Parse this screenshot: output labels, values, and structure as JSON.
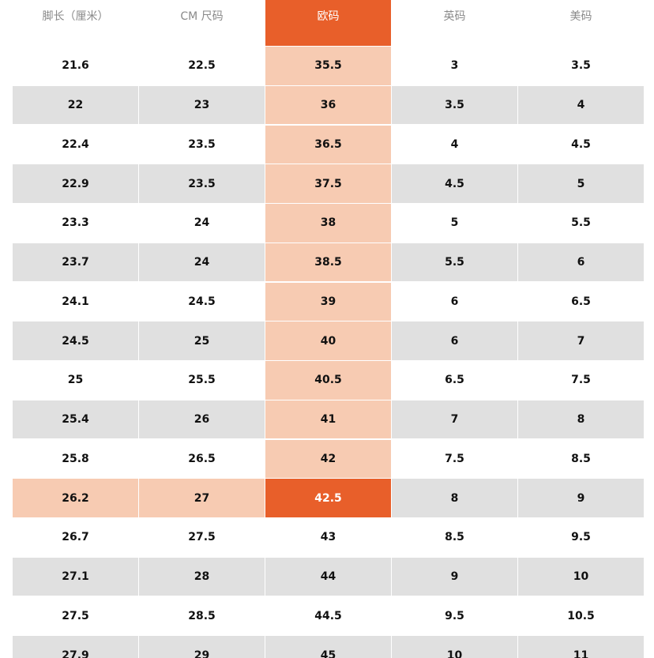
{
  "table": {
    "header": [
      "脚长（厘米）",
      "CM 尺码",
      "欧码",
      "英码",
      "美码"
    ],
    "rows": [
      [
        "21.6",
        "22.5",
        "35.5",
        "3",
        "3.5"
      ],
      [
        "22",
        "23",
        "36",
        "3.5",
        "4"
      ],
      [
        "22.4",
        "23.5",
        "36.5",
        "4",
        "4.5"
      ],
      [
        "22.9",
        "23.5",
        "37.5",
        "4.5",
        "5"
      ],
      [
        "23.3",
        "24",
        "38",
        "5",
        "5.5"
      ],
      [
        "23.7",
        "24",
        "38.5",
        "5.5",
        "6"
      ],
      [
        "24.1",
        "24.5",
        "39",
        "6",
        "6.5"
      ],
      [
        "24.5",
        "25",
        "40",
        "6",
        "7"
      ],
      [
        "25",
        "25.5",
        "40.5",
        "6.5",
        "7.5"
      ],
      [
        "25.4",
        "26",
        "41",
        "7",
        "8"
      ],
      [
        "25.8",
        "26.5",
        "42",
        "7.5",
        "8.5"
      ],
      [
        "26.2",
        "27",
        "42.5",
        "8",
        "9"
      ],
      [
        "26.7",
        "27.5",
        "43",
        "8.5",
        "9.5"
      ],
      [
        "27.1",
        "28",
        "44",
        "9",
        "10"
      ],
      [
        "27.5",
        "28.5",
        "44.5",
        "9.5",
        "10.5"
      ],
      [
        "27.9",
        "29",
        "45",
        "10",
        "11"
      ]
    ]
  }
}
